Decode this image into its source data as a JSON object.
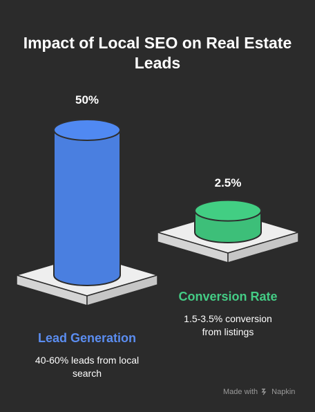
{
  "title_lines": [
    "Impact of Local SEO on Real Estate",
    "Leads"
  ],
  "chart_data": {
    "type": "bar",
    "title": "Impact of Local SEO on Real Estate Leads",
    "categories": [
      "Lead Generation",
      "Conversion Rate"
    ],
    "values": [
      50,
      2.5
    ],
    "value_labels": [
      "50%",
      "2.5%"
    ],
    "descriptions": [
      "40-60% leads from local search",
      "1.5-3.5% conversion from listings"
    ],
    "colors": [
      "#4a7fe0",
      "#3dbf79"
    ],
    "category_colors": [
      "#5b8df0",
      "#44cc85"
    ]
  },
  "labels": {
    "lead_pct": "50%",
    "conv_pct": "2.5%",
    "lead_cat": "Lead Generation",
    "conv_cat": "Conversion Rate",
    "lead_desc_1": "40-60% leads from local",
    "lead_desc_2": "search",
    "conv_desc_1": "1.5-3.5% conversion",
    "conv_desc_2": "from listings"
  },
  "footer": {
    "made_with": "Made with",
    "brand": "Napkin"
  }
}
